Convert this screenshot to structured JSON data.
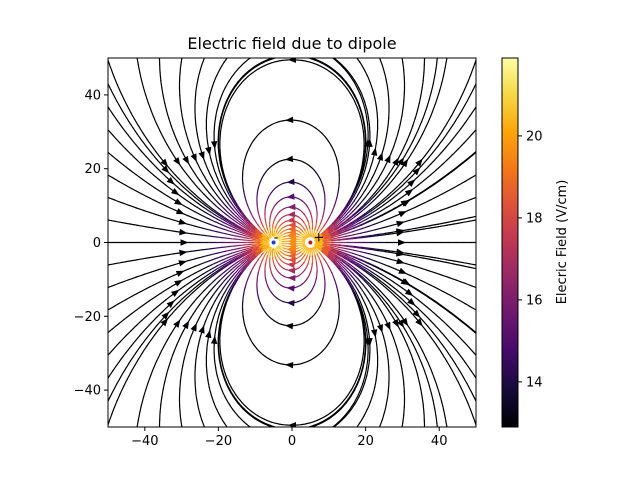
{
  "chart_data": {
    "type": "streamplot",
    "title": "Electric field due to dipole",
    "xlabel": "",
    "ylabel": "",
    "xlim": [
      -50,
      50
    ],
    "ylim": [
      -50,
      50
    ],
    "xticks": [
      -40,
      -20,
      0,
      20,
      40
    ],
    "yticks": [
      -40,
      -20,
      0,
      20,
      40
    ],
    "xtick_labels": [
      "−40",
      "−20",
      "0",
      "20",
      "40"
    ],
    "ytick_labels": [
      "−40",
      "−20",
      "0",
      "20",
      "40"
    ],
    "grid": false,
    "colormap": "inferno",
    "colorbar": {
      "label": "Elecric Field (V/cm)",
      "range": [
        12.9,
        21.9
      ],
      "ticks": [
        14,
        16,
        18,
        20
      ],
      "tick_labels": [
        "14",
        "16",
        "18",
        "20"
      ]
    },
    "charges": [
      {
        "sign": "+",
        "x": 5,
        "y": 0,
        "color": "#b22222"
      },
      {
        "sign": "-",
        "x": -5,
        "y": 0,
        "color": "#1f3fbf"
      }
    ]
  }
}
